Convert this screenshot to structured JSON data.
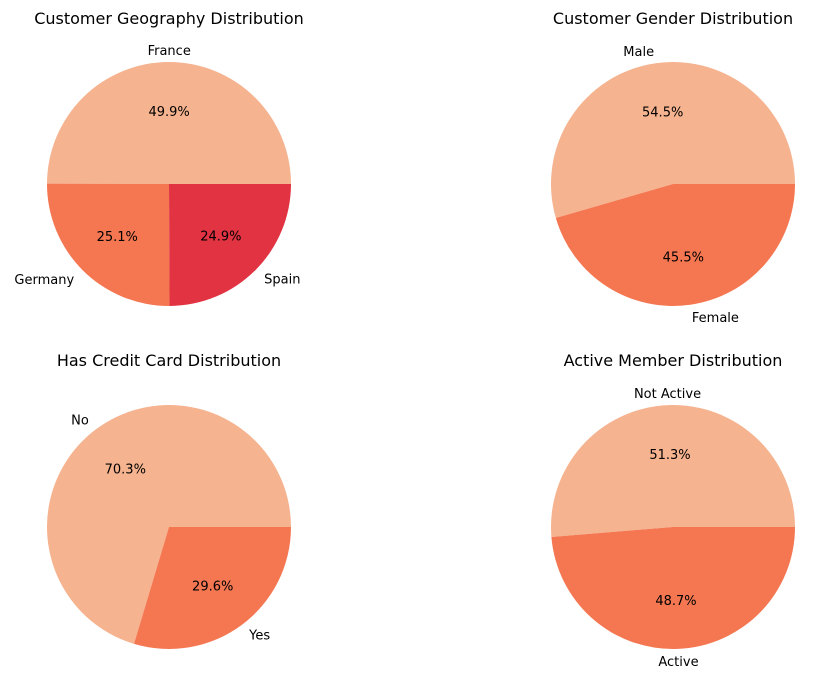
{
  "chart_data": [
    {
      "type": "pie",
      "title": "Customer Geography Distribution",
      "categories": [
        "France",
        "Germany",
        "Spain"
      ],
      "values": [
        49.9,
        25.1,
        24.9
      ],
      "labels_pct": [
        "49.9%",
        "25.1%",
        "24.9%"
      ],
      "colors": [
        "#f5b38f",
        "#f47752",
        "#e13342"
      ]
    },
    {
      "type": "pie",
      "title": "Customer Gender Distribution",
      "categories": [
        "Male",
        "Female"
      ],
      "values": [
        54.5,
        45.5
      ],
      "labels_pct": [
        "54.5%",
        "45.5%"
      ],
      "colors": [
        "#f5b38f",
        "#f47752"
      ]
    },
    {
      "type": "pie",
      "title": "Has Credit Card Distribution",
      "categories": [
        "No",
        "Yes"
      ],
      "values": [
        70.3,
        29.6
      ],
      "labels_pct": [
        "70.3%",
        "29.6%"
      ],
      "colors": [
        "#f5b38f",
        "#f47752"
      ]
    },
    {
      "type": "pie",
      "title": "Active Member Distribution",
      "categories": [
        "Not Active",
        "Active"
      ],
      "values": [
        51.3,
        48.7
      ],
      "labels_pct": [
        "51.3%",
        "48.7%"
      ],
      "colors": [
        "#f5b38f",
        "#f47752"
      ]
    }
  ]
}
